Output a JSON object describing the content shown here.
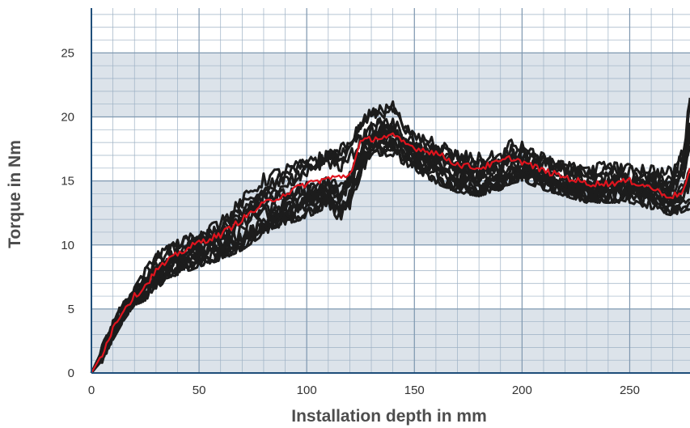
{
  "chart_data": {
    "type": "line",
    "xlabel": "Installation depth in mm",
    "ylabel": "Torque in Nm",
    "xlim": [
      0,
      278
    ],
    "ylim": [
      0,
      28.5
    ],
    "x_ticks": [
      0,
      50,
      100,
      150,
      200,
      250
    ],
    "y_ticks": [
      0,
      5,
      10,
      15,
      20,
      25
    ],
    "x_tick_labels": [
      "0",
      "50",
      "100",
      "150",
      "200",
      "250"
    ],
    "y_tick_labels": [
      "0",
      "5",
      "10",
      "15",
      "20",
      "25"
    ],
    "minor_grid_x": 10,
    "minor_grid_y": 1,
    "banded_background": true,
    "band_color": "#dce3ea",
    "grid": true,
    "colors": {
      "individual_runs": "#1c1c1c",
      "mean": "#e0141e",
      "axis": "#1f4e7a",
      "grid": "#9db1c4"
    },
    "series": [
      {
        "role": "individual-runs-upper-envelope",
        "x": [
          0,
          5,
          10,
          15,
          20,
          25,
          30,
          40,
          50,
          60,
          70,
          80,
          90,
          100,
          110,
          115,
          120,
          125,
          130,
          135,
          140,
          145,
          150,
          160,
          170,
          180,
          190,
          195,
          200,
          210,
          220,
          230,
          240,
          250,
          260,
          265,
          270,
          275,
          278
        ],
        "y": [
          0,
          2.0,
          4.0,
          5.5,
          6.5,
          8.0,
          9.2,
          10.2,
          11.0,
          12.0,
          13.8,
          15.5,
          16.5,
          17.3,
          18.0,
          18.2,
          19.0,
          19.8,
          20.5,
          20.8,
          21.0,
          19.5,
          18.5,
          18.3,
          17.3,
          17.0,
          17.2,
          18.3,
          18.0,
          17.2,
          16.5,
          16.2,
          16.3,
          16.1,
          16.0,
          15.8,
          16.0,
          18.0,
          22.5
        ]
      },
      {
        "role": "individual-runs-lower-envelope",
        "x": [
          0,
          5,
          10,
          15,
          20,
          25,
          30,
          40,
          50,
          60,
          70,
          80,
          90,
          100,
          110,
          115,
          120,
          125,
          130,
          135,
          140,
          145,
          150,
          160,
          170,
          180,
          190,
          195,
          200,
          210,
          220,
          230,
          240,
          250,
          260,
          265,
          270,
          275,
          278
        ],
        "y": [
          0,
          1.0,
          2.8,
          4.3,
          5.5,
          5.8,
          6.8,
          7.8,
          8.5,
          9.0,
          9.8,
          11.0,
          11.8,
          12.3,
          13.2,
          12.0,
          13.0,
          15.5,
          17.0,
          17.2,
          17.0,
          16.5,
          16.0,
          15.0,
          14.3,
          14.0,
          14.5,
          15.0,
          15.2,
          14.5,
          14.0,
          13.5,
          13.5,
          13.5,
          13.0,
          12.7,
          12.5,
          12.8,
          13.0
        ]
      },
      {
        "name": "",
        "role": "mean",
        "x": [
          0,
          5,
          10,
          15,
          20,
          25,
          30,
          40,
          50,
          60,
          70,
          80,
          90,
          100,
          110,
          115,
          120,
          125,
          130,
          135,
          140,
          145,
          150,
          160,
          170,
          180,
          190,
          195,
          200,
          210,
          220,
          230,
          240,
          250,
          260,
          265,
          270,
          275,
          278
        ],
        "y": [
          0,
          1.5,
          3.5,
          5.0,
          6.0,
          6.8,
          8.0,
          9.3,
          10.2,
          10.8,
          12.0,
          13.2,
          14.0,
          14.8,
          15.2,
          15.3,
          15.5,
          18.0,
          18.3,
          18.4,
          18.5,
          18.0,
          17.6,
          17.2,
          16.3,
          16.0,
          16.5,
          16.8,
          16.5,
          15.8,
          15.3,
          14.8,
          14.8,
          15.0,
          14.5,
          14.0,
          13.8,
          14.2,
          16.0
        ]
      }
    ]
  }
}
